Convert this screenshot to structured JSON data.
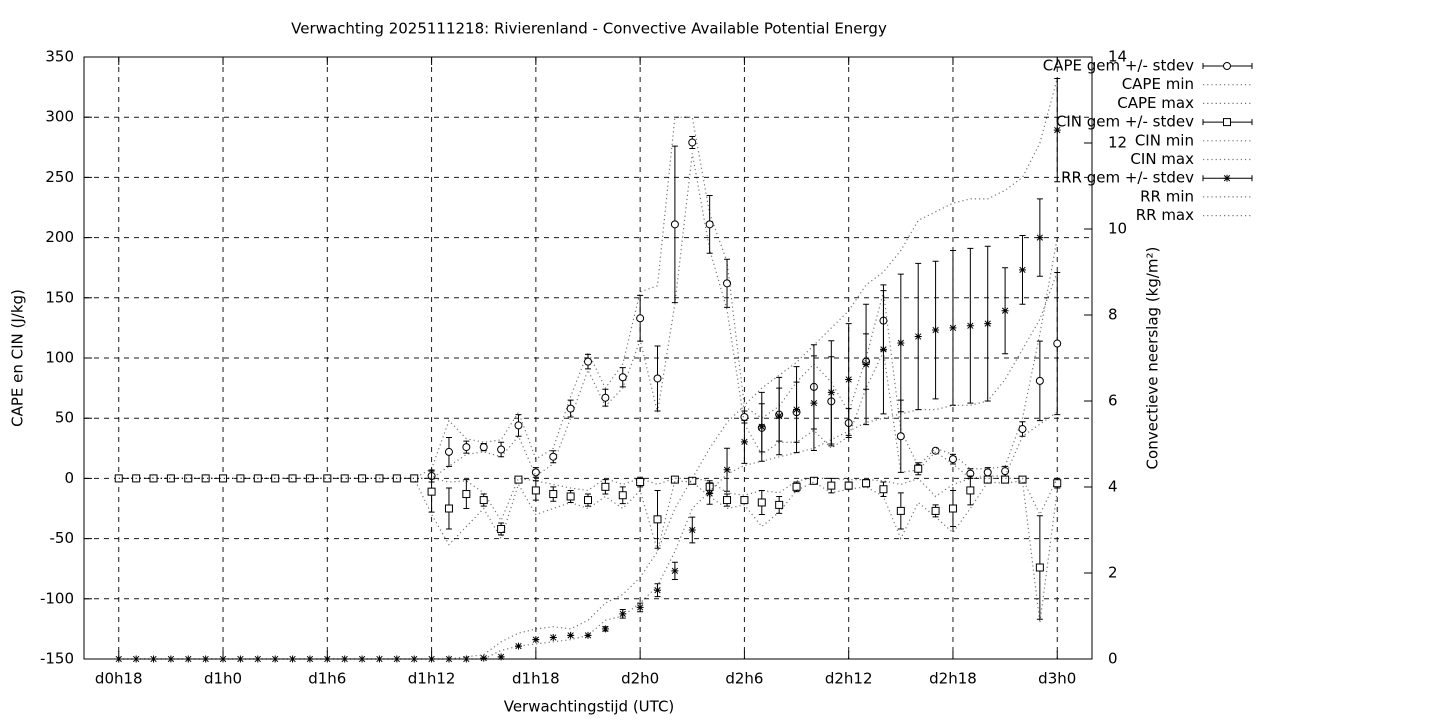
{
  "chart_data": {
    "type": "errorbar",
    "title": "Verwachting 2025111218: Rivierenland - Convective Available Potential Energy",
    "x_label": "Verwachtingstijd (UTC)",
    "y_label": "CAPE en CIN (J/kg)",
    "y2_label": "Convectieve neerslag (kg/m²)",
    "x": [
      18,
      19,
      20,
      21,
      22,
      23,
      24,
      25,
      26,
      27,
      28,
      29,
      30,
      31,
      32,
      33,
      34,
      35,
      36,
      37,
      38,
      39,
      40,
      41,
      42,
      43,
      44,
      45,
      46,
      47,
      48,
      49,
      50,
      51,
      52,
      53,
      54,
      55,
      56,
      57,
      58,
      59,
      60,
      61,
      62,
      63,
      64,
      65,
      66,
      67,
      68,
      69,
      70,
      71,
      72
    ],
    "xlim": [
      16,
      74
    ],
    "xticks": [
      {
        "value": 18,
        "label": "d0h18"
      },
      {
        "value": 24,
        "label": "d1h0"
      },
      {
        "value": 30,
        "label": "d1h6"
      },
      {
        "value": 36,
        "label": "d1h12"
      },
      {
        "value": 42,
        "label": "d1h18"
      },
      {
        "value": 48,
        "label": "d2h0"
      },
      {
        "value": 54,
        "label": "d2h6"
      },
      {
        "value": 60,
        "label": "d2h12"
      },
      {
        "value": 66,
        "label": "d2h18"
      },
      {
        "value": 72,
        "label": "d3h0"
      }
    ],
    "ylim": [
      -150,
      350
    ],
    "yticks": [
      -150,
      -100,
      -50,
      0,
      50,
      100,
      150,
      200,
      250,
      300,
      350
    ],
    "y2lim": [
      0,
      14
    ],
    "y2ticks": [
      0,
      2,
      4,
      6,
      8,
      10,
      12,
      14
    ],
    "grid": true,
    "legend": "outside-right",
    "series": [
      {
        "name": "CAPE gem +/- stdev",
        "color": "#000000",
        "marker": "circle",
        "values": [
          0,
          0,
          0,
          0,
          0,
          0,
          0,
          0,
          0,
          0,
          0,
          0,
          0,
          0,
          0,
          0,
          0,
          0,
          2,
          22,
          26,
          26,
          24,
          44,
          5,
          18,
          58,
          97,
          67,
          84,
          133,
          83,
          211,
          279,
          211,
          162,
          51,
          42,
          53,
          55,
          76,
          64,
          46,
          97,
          131,
          35,
          9,
          23,
          16,
          4,
          5,
          6,
          41,
          81,
          112
        ],
        "errors": [
          0,
          0,
          0,
          0,
          0,
          0,
          0,
          0,
          0,
          0,
          0,
          0,
          0,
          0,
          0,
          0,
          0,
          0,
          5,
          12,
          5,
          3,
          6,
          9,
          4,
          5,
          7,
          6,
          7,
          8,
          19,
          27,
          65,
          5,
          24,
          20,
          5,
          20,
          22,
          25,
          35,
          37,
          12,
          23,
          25,
          30,
          2,
          1,
          4,
          4,
          4,
          4,
          6,
          33,
          59
        ]
      },
      {
        "name": "CAPE min",
        "color": "#000000",
        "values": [
          0,
          0,
          0,
          0,
          0,
          0,
          0,
          0,
          0,
          0,
          0,
          0,
          0,
          0,
          0,
          0,
          0,
          0,
          0,
          10,
          20,
          22,
          18,
          35,
          2,
          12,
          50,
          90,
          60,
          75,
          115,
          55,
          145,
          270,
          190,
          140,
          45,
          20,
          30,
          30,
          40,
          25,
          35,
          75,
          105,
          5,
          7,
          22,
          12,
          0,
          2,
          2,
          35,
          45,
          55
        ]
      },
      {
        "name": "CAPE max",
        "color": "#000000",
        "values": [
          0,
          0,
          0,
          0,
          0,
          0,
          0,
          0,
          0,
          0,
          0,
          0,
          0,
          0,
          0,
          0,
          0,
          0,
          8,
          48,
          33,
          30,
          32,
          55,
          16,
          25,
          68,
          105,
          75,
          95,
          155,
          160,
          300,
          300,
          220,
          180,
          60,
          50,
          60,
          80,
          95,
          80,
          55,
          100,
          155,
          40,
          10,
          25,
          20,
          8,
          8,
          10,
          50,
          120,
          200
        ]
      },
      {
        "name": "CIN gem +/- stdev",
        "color": "#000000",
        "marker": "square",
        "values": [
          0,
          0,
          0,
          0,
          0,
          0,
          0,
          0,
          0,
          0,
          0,
          0,
          0,
          0,
          0,
          0,
          0,
          0,
          -11,
          -25,
          -13,
          -18,
          -42,
          -1,
          -10,
          -13,
          -15,
          -18,
          -7,
          -14,
          -3,
          -34,
          -1,
          -2,
          -7,
          -18,
          -18,
          -20,
          -22,
          -7,
          -2,
          -6,
          -6,
          -4,
          -9,
          -27,
          8,
          -27,
          -25,
          -10,
          -1,
          -1,
          -1,
          -74,
          -4
        ],
        "errors": [
          0,
          0,
          0,
          0,
          0,
          0,
          0,
          0,
          0,
          0,
          0,
          0,
          0,
          0,
          0,
          0,
          0,
          0,
          17,
          17,
          12,
          5,
          5,
          1,
          8,
          6,
          5,
          5,
          6,
          7,
          4,
          24,
          1,
          1,
          5,
          5,
          3,
          10,
          7,
          4,
          2,
          6,
          3,
          3,
          6,
          15,
          5,
          5,
          15,
          12,
          1,
          2,
          1,
          43,
          4
        ]
      },
      {
        "name": "CIN min",
        "color": "#000000",
        "values": [
          0,
          0,
          0,
          0,
          0,
          0,
          0,
          0,
          0,
          0,
          0,
          0,
          0,
          0,
          0,
          0,
          0,
          0,
          -30,
          -55,
          -40,
          -25,
          -50,
          -5,
          -30,
          -25,
          -20,
          -25,
          -15,
          -25,
          -10,
          -60,
          -2,
          -3,
          -15,
          -25,
          -22,
          -40,
          -28,
          -10,
          -3,
          -12,
          -9,
          -7,
          -15,
          -50,
          -20,
          -32,
          -45,
          -25,
          -3,
          -4,
          -2,
          -120,
          -10
        ]
      },
      {
        "name": "CIN max",
        "color": "#000000",
        "values": [
          0,
          0,
          0,
          0,
          0,
          0,
          0,
          0,
          0,
          0,
          0,
          0,
          0,
          0,
          0,
          0,
          0,
          0,
          0,
          -3,
          -2,
          -12,
          -35,
          0,
          -2,
          -5,
          -8,
          -10,
          0,
          -5,
          0,
          -5,
          0,
          0,
          -2,
          -12,
          -14,
          -10,
          -12,
          -2,
          0,
          0,
          -1,
          -1,
          -2,
          -5,
          0,
          -15,
          -5,
          0,
          0,
          0,
          0,
          -30,
          0
        ]
      },
      {
        "name": "RR gem +/- stdev",
        "color": "#000000",
        "marker": "star",
        "axis": "y2",
        "values": [
          0,
          0,
          0,
          0,
          0,
          0,
          0,
          0,
          0,
          0,
          0,
          0,
          0,
          0,
          0,
          0,
          0,
          0,
          0,
          0,
          0,
          0.02,
          0.05,
          0.3,
          0.45,
          0.5,
          0.55,
          0.55,
          0.7,
          1.05,
          1.2,
          1.6,
          2.05,
          3.0,
          3.85,
          4.4,
          5.05,
          5.4,
          5.65,
          5.8,
          5.95,
          6.2,
          6.5,
          6.85,
          7.2,
          7.35,
          7.5,
          7.65,
          7.7,
          7.75,
          7.8,
          8.1,
          9.05,
          9.8,
          12.3
        ],
        "errors": [
          0,
          0,
          0,
          0,
          0,
          0,
          0,
          0,
          0,
          0,
          0,
          0,
          0,
          0,
          0,
          0,
          0,
          0,
          0,
          0,
          0,
          0,
          0,
          0,
          0,
          0,
          0,
          0,
          0.05,
          0.1,
          0.1,
          0.15,
          0.2,
          0.3,
          0.25,
          0.5,
          0.5,
          0.8,
          0.9,
          1.0,
          1.1,
          1.2,
          1.3,
          1.4,
          1.5,
          1.6,
          1.7,
          1.6,
          1.8,
          1.8,
          1.8,
          1.0,
          0.8,
          0.9,
          1.2
        ]
      },
      {
        "name": "RR min",
        "color": "#000000",
        "axis": "y2",
        "values": [
          0,
          0,
          0,
          0,
          0,
          0,
          0,
          0,
          0,
          0,
          0,
          0,
          0,
          0,
          0,
          0,
          0,
          0,
          0,
          0,
          0,
          0,
          0.2,
          0.3,
          0.35,
          0.4,
          0.45,
          0.55,
          0.9,
          1.0,
          1.3,
          1.7,
          2.5,
          3.5,
          3.9,
          4.3,
          4.5,
          4.6,
          4.7,
          4.8,
          4.9,
          5.1,
          5.3,
          5.5,
          5.6,
          5.7,
          5.8,
          5.8,
          5.9,
          5.9,
          6.0,
          6.5,
          7.2,
          7.9,
          9.0
        ]
      },
      {
        "name": "RR max",
        "color": "#000000",
        "axis": "y2",
        "values": [
          0,
          0,
          0,
          0,
          0,
          0,
          0,
          0,
          0,
          0,
          0,
          0,
          0,
          0,
          0,
          0,
          0,
          0,
          0,
          0,
          0.05,
          0.1,
          0.4,
          0.6,
          0.7,
          0.75,
          0.7,
          0.9,
          1.3,
          1.5,
          1.9,
          2.5,
          3.5,
          4.2,
          4.9,
          5.5,
          5.9,
          6.3,
          6.6,
          6.9,
          7.3,
          7.7,
          8.1,
          8.7,
          9.0,
          9.5,
          10.2,
          10.4,
          10.6,
          10.7,
          10.7,
          10.9,
          11.2,
          12.0,
          13.5
        ]
      }
    ]
  }
}
